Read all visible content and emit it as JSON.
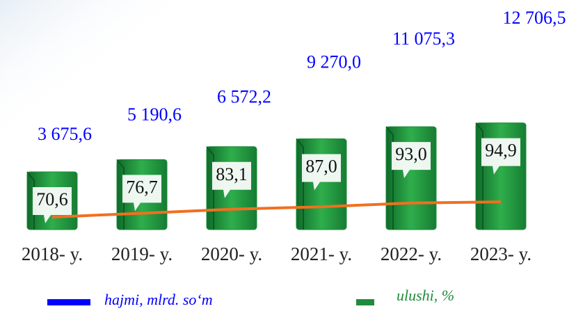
{
  "chart_data": {
    "type": "bar",
    "categories": [
      "2018- y.",
      "2019- y.",
      "2020- y.",
      "2021- y.",
      "2022- y.",
      "2023- y."
    ],
    "series": [
      {
        "name": "hajmi, mlrd. so‘m",
        "color": "#0000ff",
        "values": [
          3675.6,
          5190.6,
          6572.2,
          9270.0,
          11075.3,
          12706.5
        ],
        "value_labels": [
          "3 675,6",
          "5 190,6",
          "6 572,2",
          "9 270,0",
          "11 075,3",
          "12 706,5"
        ]
      },
      {
        "name": "ulushi, %",
        "color": "#1e8c3a",
        "values": [
          70.6,
          76.7,
          83.1,
          87.0,
          93.0,
          94.9
        ],
        "value_labels": [
          "70,6",
          "76,7",
          "83,1",
          "87,0",
          "93,0",
          "94,9"
        ]
      }
    ],
    "line_color": "#f07020"
  }
}
